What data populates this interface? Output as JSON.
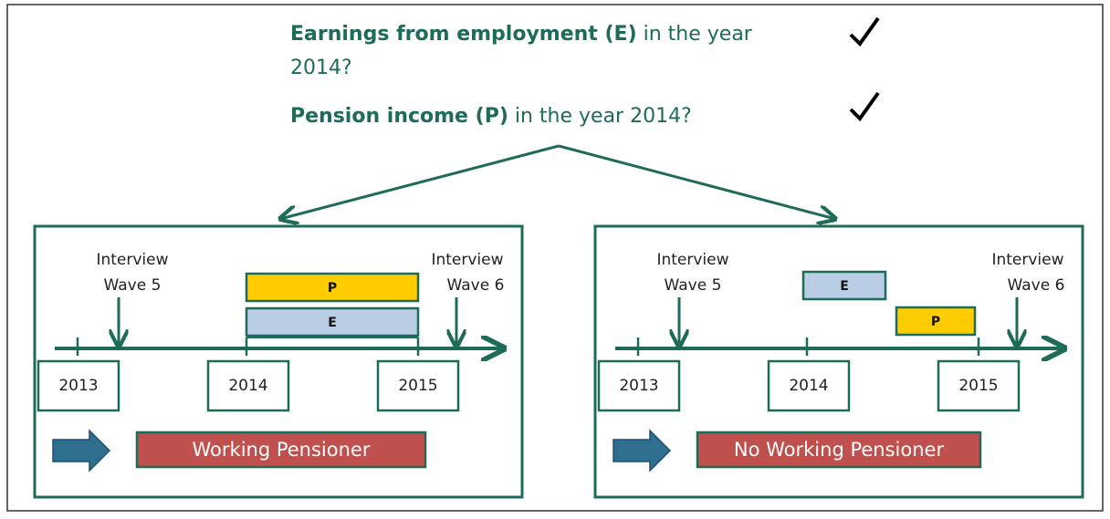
{
  "question": {
    "line1_bold": "Earnings from employment (E)",
    "line1_rest": " in the year",
    "line2": "2014?",
    "line3_bold": "Pension income (P)",
    "line3_rest": " in the year 2014?"
  },
  "panels": [
    {
      "interview_left": [
        "Interview",
        "Wave 5"
      ],
      "interview_right": [
        "Interview",
        "Wave 6"
      ],
      "bars": [
        "P",
        "E"
      ],
      "years": [
        "2013",
        "2014",
        "2015"
      ],
      "result": "Working Pensioner"
    },
    {
      "interview_left": [
        "Interview",
        "Wave 5"
      ],
      "interview_right": [
        "Interview",
        "Wave 6"
      ],
      "bars": [
        "E",
        "P"
      ],
      "years": [
        "2013",
        "2014",
        "2015"
      ],
      "result": "No Working Pensioner"
    }
  ]
}
